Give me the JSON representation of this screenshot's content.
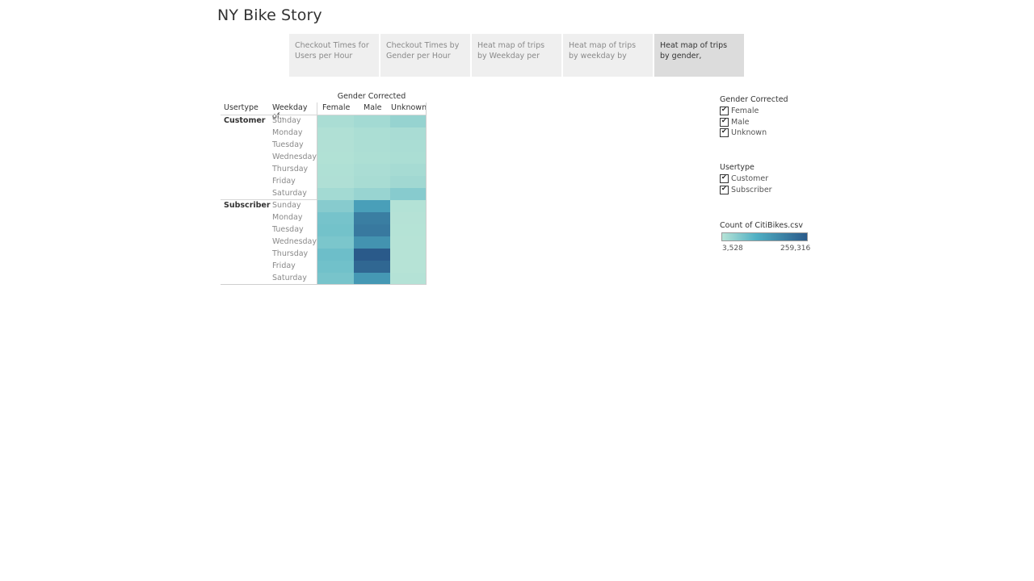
{
  "story": {
    "title": "NY Bike Story"
  },
  "tabs": [
    {
      "label": "Checkout Times for Users per Hour",
      "active": false
    },
    {
      "label": "Checkout Times by Gender per Hour",
      "active": false
    },
    {
      "label": "Heat map of trips by Weekday per Hour",
      "active": false
    },
    {
      "label": "Heat map of trips by weekday by gender p..",
      "active": false
    },
    {
      "label": "Heat map of trips by gender, weekday, and..",
      "active": true
    }
  ],
  "heatmap": {
    "column_group_title": "Gender Corrected",
    "row_headers": {
      "usertype": "Usertype",
      "weekday": "Weekday of.."
    },
    "columns": [
      "Female",
      "Male",
      "Unknown"
    ],
    "weekdays": [
      "Sunday",
      "Monday",
      "Tuesday",
      "Wednesday",
      "Thursday",
      "Friday",
      "Saturday"
    ],
    "groups": [
      {
        "usertype": "Customer"
      },
      {
        "usertype": "Subscriber"
      }
    ]
  },
  "chart_data": {
    "type": "heatmap",
    "title": "Gender Corrected",
    "x_categories": [
      "Female",
      "Male",
      "Unknown"
    ],
    "y_categories": [
      "Customer - Sunday",
      "Customer - Monday",
      "Customer - Tuesday",
      "Customer - Wednesday",
      "Customer - Thursday",
      "Customer - Friday",
      "Customer - Saturday",
      "Subscriber - Sunday",
      "Subscriber - Monday",
      "Subscriber - Tuesday",
      "Subscriber - Wednesday",
      "Subscriber - Thursday",
      "Subscriber - Friday",
      "Subscriber - Saturday"
    ],
    "values": [
      [
        14000,
        20000,
        32000
      ],
      [
        9000,
        13000,
        15000
      ],
      [
        8000,
        12000,
        14000
      ],
      [
        7500,
        11000,
        13000
      ],
      [
        9500,
        14000,
        18000
      ],
      [
        10000,
        16000,
        22000
      ],
      [
        20000,
        30000,
        45000
      ],
      [
        45000,
        125000,
        6000
      ],
      [
        60000,
        190000,
        4500
      ],
      [
        62000,
        200000,
        4000
      ],
      [
        55000,
        150000,
        3900
      ],
      [
        68000,
        259316,
        3600
      ],
      [
        64000,
        235000,
        3528
      ],
      [
        58000,
        140000,
        5500
      ]
    ],
    "color_scale": {
      "title": "Count of CitiBikes.csv",
      "min": 3528,
      "max": 259316,
      "min_label": "3,528",
      "max_label": "259,316",
      "min_color": "#b6e3d6",
      "max_color": "#2a5a8a"
    }
  },
  "filters": {
    "gender": {
      "title": "Gender Corrected",
      "items": [
        "Female",
        "Male",
        "Unknown"
      ]
    },
    "usertype": {
      "title": "Usertype",
      "items": [
        "Customer",
        "Subscriber"
      ]
    }
  }
}
